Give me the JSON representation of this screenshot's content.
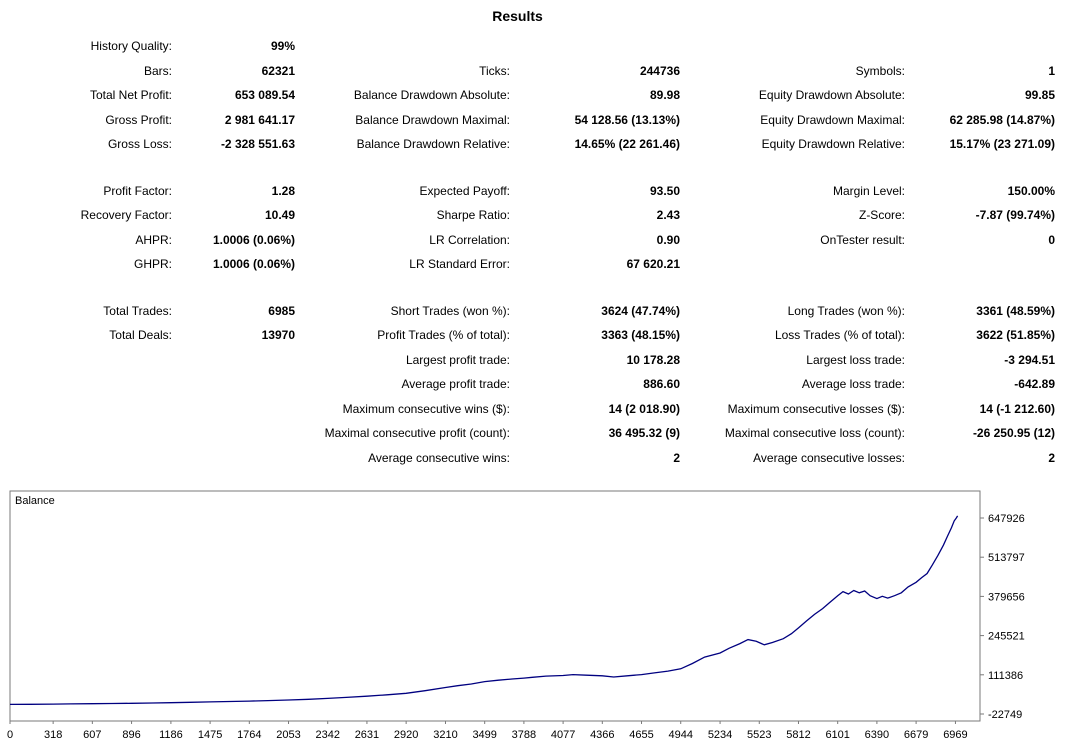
{
  "title": "Results",
  "stats": {
    "rows": [
      {
        "cells": [
          {
            "label": "History Quality:",
            "value": "99%"
          },
          null,
          null
        ]
      },
      {
        "cells": [
          {
            "label": "Bars:",
            "value": "62321"
          },
          {
            "label": "Ticks:",
            "value": "244736"
          },
          {
            "label": "Symbols:",
            "value": "1"
          }
        ]
      },
      {
        "cells": [
          {
            "label": "Total Net Profit:",
            "value": "653 089.54"
          },
          {
            "label": "Balance Drawdown Absolute:",
            "value": "89.98"
          },
          {
            "label": "Equity Drawdown Absolute:",
            "value": "99.85"
          }
        ]
      },
      {
        "cells": [
          {
            "label": "Gross Profit:",
            "value": "2 981 641.17"
          },
          {
            "label": "Balance Drawdown Maximal:",
            "value": "54 128.56 (13.13%)"
          },
          {
            "label": "Equity Drawdown Maximal:",
            "value": "62 285.98 (14.87%)"
          }
        ]
      },
      {
        "cells": [
          {
            "label": "Gross Loss:",
            "value": "-2 328 551.63"
          },
          {
            "label": "Balance Drawdown Relative:",
            "value": "14.65% (22 261.46)"
          },
          {
            "label": "Equity Drawdown Relative:",
            "value": "15.17% (23 271.09)"
          }
        ]
      },
      {
        "gap": true
      },
      {
        "cells": [
          {
            "label": "Profit Factor:",
            "value": "1.28"
          },
          {
            "label": "Expected Payoff:",
            "value": "93.50"
          },
          {
            "label": "Margin Level:",
            "value": "150.00%"
          }
        ]
      },
      {
        "cells": [
          {
            "label": "Recovery Factor:",
            "value": "10.49"
          },
          {
            "label": "Sharpe Ratio:",
            "value": "2.43"
          },
          {
            "label": "Z-Score:",
            "value": "-7.87 (99.74%)"
          }
        ]
      },
      {
        "cells": [
          {
            "label": "AHPR:",
            "value": "1.0006 (0.06%)"
          },
          {
            "label": "LR Correlation:",
            "value": "0.90"
          },
          {
            "label": "OnTester result:",
            "value": "0"
          }
        ]
      },
      {
        "cells": [
          {
            "label": "GHPR:",
            "value": "1.0006 (0.06%)"
          },
          {
            "label": "LR Standard Error:",
            "value": "67 620.21"
          },
          null
        ]
      },
      {
        "gap": true
      },
      {
        "cells": [
          {
            "label": "Total Trades:",
            "value": "6985"
          },
          {
            "label": "Short Trades (won %):",
            "value": "3624 (47.74%)"
          },
          {
            "label": "Long Trades (won %):",
            "value": "3361 (48.59%)"
          }
        ]
      },
      {
        "cells": [
          {
            "label": "Total Deals:",
            "value": "13970"
          },
          {
            "label": "Profit Trades (% of total):",
            "value": "3363 (48.15%)"
          },
          {
            "label": "Loss Trades (% of total):",
            "value": "3622 (51.85%)"
          }
        ]
      },
      {
        "cells": [
          null,
          {
            "label": "Largest profit trade:",
            "value": "10 178.28"
          },
          {
            "label": "Largest loss trade:",
            "value": "-3 294.51"
          }
        ]
      },
      {
        "cells": [
          null,
          {
            "label": "Average profit trade:",
            "value": "886.60"
          },
          {
            "label": "Average loss trade:",
            "value": "-642.89"
          }
        ]
      },
      {
        "cells": [
          null,
          {
            "label": "Maximum consecutive wins ($):",
            "value": "14 (2 018.90)"
          },
          {
            "label": "Maximum consecutive losses ($):",
            "value": "14 (-1 212.60)"
          }
        ]
      },
      {
        "cells": [
          null,
          {
            "label": "Maximal consecutive profit (count):",
            "value": "36 495.32 (9)"
          },
          {
            "label": "Maximal consecutive loss (count):",
            "value": "-26 250.95 (12)"
          }
        ]
      },
      {
        "cells": [
          null,
          {
            "label": "Average consecutive wins:",
            "value": "2"
          },
          {
            "label": "Average consecutive losses:",
            "value": "2"
          }
        ]
      }
    ]
  },
  "chart_data": {
    "type": "line",
    "title": "Balance",
    "xlabel": "",
    "ylabel": "",
    "grid": false,
    "legend_position": "top-left-inside",
    "y_axis_position": "right",
    "line_color": "#000080",
    "border_color": "#7a7a7a",
    "xlim": [
      0,
      7150
    ],
    "ylim": [
      -46700,
      740300
    ],
    "x_ticks": [
      0,
      318,
      607,
      896,
      1186,
      1475,
      1764,
      2053,
      2342,
      2631,
      2920,
      3210,
      3499,
      3788,
      4077,
      4366,
      4655,
      4944,
      5234,
      5523,
      5812,
      6101,
      6390,
      6679,
      6969
    ],
    "y_ticks": [
      647926,
      513797,
      379656,
      245521,
      111386,
      -22749
    ],
    "series": [
      {
        "name": "Balance",
        "points": [
          [
            0,
            10000
          ],
          [
            150,
            10500
          ],
          [
            318,
            11200
          ],
          [
            450,
            11800
          ],
          [
            607,
            12500
          ],
          [
            750,
            13200
          ],
          [
            896,
            14000
          ],
          [
            1050,
            15000
          ],
          [
            1186,
            16000
          ],
          [
            1330,
            17200
          ],
          [
            1475,
            18500
          ],
          [
            1620,
            20000
          ],
          [
            1764,
            21500
          ],
          [
            1900,
            23000
          ],
          [
            2053,
            25000
          ],
          [
            2200,
            27500
          ],
          [
            2342,
            30500
          ],
          [
            2480,
            34000
          ],
          [
            2631,
            38000
          ],
          [
            2780,
            43000
          ],
          [
            2920,
            48000
          ],
          [
            3060,
            57000
          ],
          [
            3210,
            68000
          ],
          [
            3300,
            74000
          ],
          [
            3400,
            80000
          ],
          [
            3499,
            88000
          ],
          [
            3600,
            93000
          ],
          [
            3700,
            97000
          ],
          [
            3788,
            100000
          ],
          [
            3850,
            103000
          ],
          [
            3950,
            107000
          ],
          [
            4077,
            109000
          ],
          [
            4150,
            112000
          ],
          [
            4250,
            110000
          ],
          [
            4366,
            108000
          ],
          [
            4450,
            104000
          ],
          [
            4550,
            108000
          ],
          [
            4655,
            112000
          ],
          [
            4750,
            118000
          ],
          [
            4850,
            124000
          ],
          [
            4944,
            132000
          ],
          [
            5030,
            150000
          ],
          [
            5120,
            172000
          ],
          [
            5234,
            186000
          ],
          [
            5300,
            202000
          ],
          [
            5380,
            218000
          ],
          [
            5440,
            232000
          ],
          [
            5500,
            226000
          ],
          [
            5560,
            214000
          ],
          [
            5620,
            222000
          ],
          [
            5700,
            235000
          ],
          [
            5760,
            252000
          ],
          [
            5812,
            272000
          ],
          [
            5870,
            295000
          ],
          [
            5930,
            318000
          ],
          [
            5990,
            338000
          ],
          [
            6040,
            358000
          ],
          [
            6101,
            382000
          ],
          [
            6140,
            396000
          ],
          [
            6180,
            388000
          ],
          [
            6220,
            400000
          ],
          [
            6260,
            392000
          ],
          [
            6300,
            398000
          ],
          [
            6340,
            382000
          ],
          [
            6390,
            372000
          ],
          [
            6430,
            380000
          ],
          [
            6470,
            374000
          ],
          [
            6520,
            382000
          ],
          [
            6570,
            392000
          ],
          [
            6620,
            412000
          ],
          [
            6679,
            428000
          ],
          [
            6720,
            444000
          ],
          [
            6760,
            458000
          ],
          [
            6800,
            488000
          ],
          [
            6840,
            520000
          ],
          [
            6880,
            555000
          ],
          [
            6910,
            585000
          ],
          [
            6940,
            615000
          ],
          [
            6960,
            638000
          ],
          [
            6975,
            648000
          ],
          [
            6985,
            655000
          ]
        ]
      }
    ]
  }
}
